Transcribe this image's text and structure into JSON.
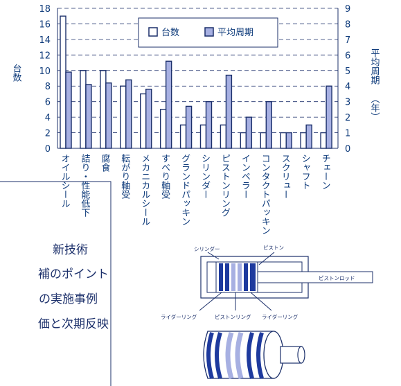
{
  "chart_data": {
    "type": "bar",
    "categories": [
      "オイルシール",
      "詰り・性能低下",
      "腐食",
      "転がり軸受",
      "メカニカルシール",
      "すべり軸受",
      "グランドパッキン",
      "シリンダー",
      "ピストンリング",
      "インペラー",
      "コンタクトパッキン",
      "スクリュー",
      "シャフト",
      "チェーン"
    ],
    "series": [
      {
        "name": "台数",
        "axis": "left",
        "values": [
          17,
          10,
          10,
          8,
          7,
          5,
          3,
          3,
          3,
          2,
          2,
          2,
          2,
          2
        ]
      },
      {
        "name": "平均周期",
        "axis": "right",
        "values": [
          4.9,
          4.1,
          4.2,
          4.4,
          3.8,
          5.6,
          2.7,
          3.0,
          4.7,
          2.0,
          3.0,
          1.0,
          1.5,
          4.0
        ]
      }
    ],
    "left_axis": {
      "label": "台数",
      "min": 0,
      "max": 18,
      "ticks": [
        0,
        2,
        4,
        6,
        8,
        10,
        12,
        14,
        16,
        18
      ]
    },
    "right_axis": {
      "label": "平均周期",
      "unit": "（年）",
      "min": 0,
      "max": 9,
      "ticks": [
        0,
        1,
        2,
        3,
        4,
        5,
        6,
        7,
        8,
        9
      ]
    },
    "grid": "horizontal-dashed",
    "legend_position": "top-right",
    "colors": {
      "count_fill": "#ffffff",
      "period_fill": "#a7b0e2",
      "stroke": "#1b2f6a",
      "text": "#0d3a7a"
    }
  },
  "left_panel_lines": [
    "新技術",
    "補のポイント",
    "の実施事例",
    "価と次期反映"
  ],
  "diagram": {
    "cylinder_label": "シリンダー",
    "piston_label": "ピストン",
    "rod_label": "ピストンロッド",
    "rider_ring_left": "ライダーリング",
    "piston_ring": "ピストンリング",
    "rider_ring_right": "ライダーリング"
  }
}
